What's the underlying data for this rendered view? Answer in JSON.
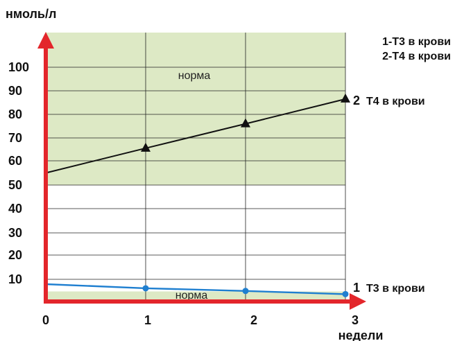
{
  "chart_data": {
    "type": "line",
    "ylabel": "нмоль/л",
    "xlabel": "недели",
    "x_ticks": [
      "0",
      "1",
      "2",
      "3"
    ],
    "y_ticks": [
      {
        "label": "100",
        "value": 100
      },
      {
        "label": "90",
        "value": 90
      },
      {
        "label": "80",
        "value": 80
      },
      {
        "label": "70",
        "value": 70
      },
      {
        "label": "60",
        "value": 60
      },
      {
        "label": "50",
        "value": 50
      },
      {
        "label": "40",
        "value": 40
      },
      {
        "label": "30",
        "value": 30
      },
      {
        "label": "20",
        "value": 20
      },
      {
        "label": "10",
        "value": 10
      }
    ],
    "series": [
      {
        "name": "T4 в крови",
        "number": "2",
        "x": [
          0,
          1,
          2,
          3
        ],
        "y": [
          55,
          65.5,
          76,
          86.5
        ],
        "color": "#111111",
        "marker": "triangle",
        "marker_x": [
          1,
          2,
          3
        ]
      },
      {
        "name": "T3 в крови",
        "number": "1",
        "x": [
          0,
          1,
          2,
          3
        ],
        "y": [
          8,
          6.3,
          5.2,
          3.9
        ],
        "color": "#1f7fd0",
        "marker": "circle",
        "marker_x": [
          1,
          2,
          3
        ]
      }
    ],
    "norm_bands": [
      {
        "label": "норма",
        "from": 50,
        "to": 110
      },
      {
        "label": "норма",
        "from": 0,
        "to": 5
      }
    ],
    "legend": [
      "1-T3 в крови",
      "2-T4 в крови"
    ],
    "grid": true,
    "axis_color": "#e3262b",
    "band_color": "#dde9c5"
  }
}
